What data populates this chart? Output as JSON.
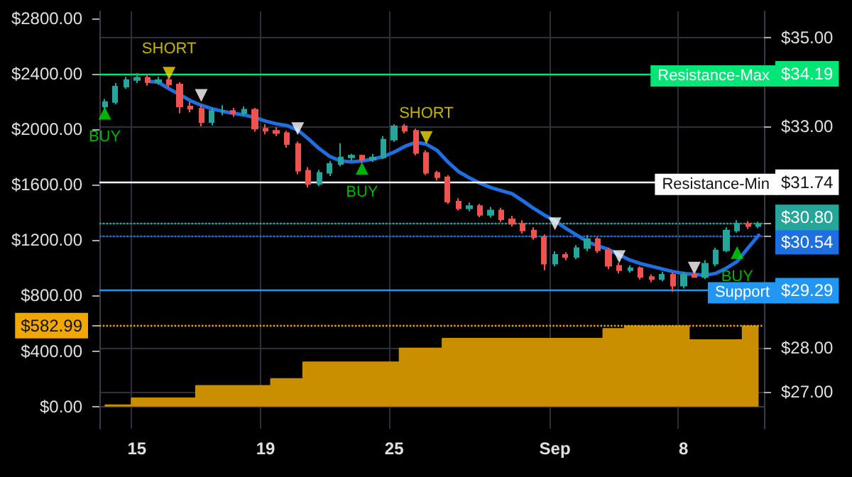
{
  "chart_data": {
    "type": "candlestick",
    "grid": true,
    "categories": [
      null,
      null,
      null,
      "15",
      null,
      null,
      null,
      null,
      null,
      null,
      null,
      null,
      null,
      null,
      null,
      "19",
      null,
      null,
      null,
      null,
      null,
      null,
      null,
      null,
      null,
      null,
      null,
      "25",
      null,
      null,
      null,
      null,
      null,
      null,
      null,
      null,
      null,
      null,
      null,
      null,
      null,
      null,
      "Sep",
      null,
      null,
      null,
      null,
      null,
      null,
      null,
      null,
      null,
      null,
      null,
      "8",
      null,
      null,
      null,
      null,
      null,
      null,
      null
    ],
    "ylim": [
      -160,
      2850
    ],
    "yticks": [
      {
        "value": 0,
        "label": "$0.00"
      },
      {
        "value": 400,
        "label": "$400.00"
      },
      {
        "value": 582.99,
        "label": "$582.99"
      },
      {
        "value": 800,
        "label": "$800.00"
      },
      {
        "value": 1200,
        "label": "$1200.00"
      },
      {
        "value": 1600,
        "label": "$1600.00"
      },
      {
        "value": 2000,
        "label": "$2000.00"
      },
      {
        "value": 2400,
        "label": "$2400.00"
      },
      {
        "value": 2800,
        "label": "$2800.00"
      }
    ],
    "y2lim": [
      26.17,
      35.6
    ],
    "y2ticks": [
      {
        "value": 27,
        "label": "$27.00"
      },
      {
        "value": 28,
        "label": "$28.00"
      },
      {
        "value": 29.29,
        "label": "$29.29"
      },
      {
        "value": 30.54,
        "label": "$30.54"
      },
      {
        "value": 30.8,
        "label": "$30.80"
      },
      {
        "value": 31.74,
        "label": "$31.74"
      },
      {
        "value": 33,
        "label": "$33.00"
      },
      {
        "value": 34.19,
        "label": "$34.19"
      },
      {
        "value": 35,
        "label": "$35.00"
      }
    ],
    "ref_lines": [
      {
        "axis": "y2",
        "value": 34.19,
        "label": "Resistance-Max",
        "color": "#00e676",
        "line_style": "solid"
      },
      {
        "axis": "y2",
        "value": 31.74,
        "label": "Resistance-Min",
        "color": "#ffffff",
        "line_style": "solid"
      },
      {
        "axis": "y2",
        "value": 29.29,
        "label": "Support",
        "color": "#2196f3",
        "line_style": "solid"
      },
      {
        "axis": "y2",
        "value": 30.8,
        "color": "#26a69a",
        "line_style": "dotted"
      },
      {
        "axis": "y2",
        "value": 30.54,
        "color": "#1e6fe0",
        "line_style": "dotted"
      },
      {
        "axis": "y",
        "value": 582.99,
        "color": "#f0a800",
        "line_style": "dotted"
      }
    ],
    "series": [
      {
        "type": "area",
        "color": "#c98f00",
        "values": [
          10,
          10,
          10,
          60,
          60,
          60,
          60,
          60,
          60,
          150,
          150,
          150,
          150,
          150,
          150,
          150,
          200,
          200,
          200,
          320,
          320,
          320,
          320,
          320,
          320,
          320,
          320,
          320,
          420,
          420,
          420,
          420,
          490,
          490,
          490,
          490,
          490,
          490,
          490,
          490,
          490,
          490,
          490,
          490,
          490,
          490,
          490,
          560,
          560,
          580,
          580,
          580,
          580,
          580,
          580,
          480,
          480,
          480,
          480,
          480,
          580,
          580
        ]
      },
      {
        "axis": "y2",
        "ohlc": [
          [
            33.45,
            33.62,
            33.4,
            33.55
          ],
          [
            33.55,
            33.98,
            33.5,
            33.9
          ],
          [
            33.9,
            34.12,
            33.85,
            34.05
          ],
          [
            34.05,
            34.2,
            33.98,
            34.1
          ],
          [
            34.1,
            34.18,
            33.92,
            34.0
          ],
          [
            34.0,
            34.12,
            33.94,
            34.05
          ],
          [
            34.05,
            34.1,
            33.88,
            33.95
          ],
          [
            33.95,
            34.0,
            33.3,
            33.45
          ],
          [
            33.45,
            33.55,
            33.32,
            33.4
          ],
          [
            33.4,
            33.48,
            33.0,
            33.1
          ],
          [
            33.1,
            33.42,
            33.02,
            33.35
          ],
          [
            33.35,
            33.48,
            33.25,
            33.35
          ],
          [
            33.35,
            33.42,
            33.22,
            33.3
          ],
          [
            33.3,
            33.45,
            33.24,
            33.38
          ],
          [
            33.38,
            33.42,
            32.88,
            32.95
          ],
          [
            32.95,
            33.05,
            32.82,
            32.9
          ],
          [
            32.9,
            32.98,
            32.78,
            32.85
          ],
          [
            32.85,
            32.9,
            32.52,
            32.6
          ],
          [
            32.6,
            32.66,
            31.92,
            32.0
          ],
          [
            32.0,
            32.08,
            31.62,
            31.7
          ],
          [
            31.7,
            32.02,
            31.65,
            31.95
          ],
          [
            31.95,
            32.22,
            31.88,
            32.15
          ],
          [
            32.15,
            32.62,
            32.1,
            32.3
          ],
          [
            32.3,
            32.38,
            32.22,
            32.34
          ],
          [
            32.34,
            32.36,
            32.18,
            32.25
          ],
          [
            32.25,
            32.38,
            32.2,
            32.3
          ],
          [
            32.3,
            32.78,
            32.26,
            32.7
          ],
          [
            32.7,
            33.05,
            32.65,
            33.0
          ],
          [
            33.0,
            33.06,
            32.84,
            32.9
          ],
          [
            32.9,
            32.95,
            32.35,
            32.4
          ],
          [
            32.4,
            32.46,
            31.9,
            31.95
          ],
          [
            31.95,
            32.0,
            31.78,
            31.85
          ],
          [
            31.85,
            31.9,
            31.25,
            31.3
          ],
          [
            31.3,
            31.38,
            31.1,
            31.15
          ],
          [
            31.15,
            31.28,
            31.08,
            31.2
          ],
          [
            31.2,
            31.25,
            30.95,
            31.0
          ],
          [
            31.0,
            31.18,
            30.94,
            31.1
          ],
          [
            31.1,
            31.16,
            30.84,
            30.9
          ],
          [
            30.9,
            30.98,
            30.74,
            30.8
          ],
          [
            30.8,
            30.88,
            30.58,
            30.65
          ],
          [
            30.65,
            30.72,
            30.44,
            30.5
          ],
          [
            30.5,
            30.56,
            29.75,
            29.9
          ],
          [
            29.9,
            30.18,
            29.84,
            30.1
          ],
          [
            30.1,
            30.16,
            29.98,
            30.05
          ],
          [
            30.05,
            30.32,
            30.0,
            30.25
          ],
          [
            30.25,
            30.55,
            30.18,
            30.45
          ],
          [
            30.45,
            30.5,
            30.14,
            30.2
          ],
          [
            30.2,
            30.26,
            29.78,
            29.85
          ],
          [
            29.85,
            29.92,
            29.68,
            29.75
          ],
          [
            29.75,
            29.86,
            29.7,
            29.8
          ],
          [
            29.8,
            29.84,
            29.54,
            29.6
          ],
          [
            29.6,
            29.66,
            29.48,
            29.55
          ],
          [
            29.55,
            29.72,
            29.5,
            29.65
          ],
          [
            29.65,
            29.7,
            29.26,
            29.4
          ],
          [
            29.4,
            29.72,
            29.34,
            29.65
          ],
          [
            29.65,
            29.7,
            29.58,
            29.6
          ],
          [
            29.6,
            29.98,
            29.55,
            29.9
          ],
          [
            29.9,
            30.26,
            29.84,
            30.2
          ],
          [
            30.2,
            30.72,
            30.16,
            30.65
          ],
          [
            30.65,
            30.88,
            30.6,
            30.8
          ],
          [
            30.8,
            30.86,
            30.68,
            30.75
          ],
          [
            30.75,
            30.85,
            30.7,
            30.8
          ]
        ],
        "colors": [
          "#26a69a",
          "#26a69a",
          "#26a69a",
          "#26a69a",
          "#ef5350",
          "#26a69a",
          "#ef5350",
          "#ef5350",
          "#ef5350",
          "#ef5350",
          "#26a69a",
          "#26a69a",
          "#ef5350",
          "#26a69a",
          "#ef5350",
          "#ef5350",
          "#ef5350",
          "#ef5350",
          "#ef5350",
          "#ef5350",
          "#26a69a",
          "#26a69a",
          "#26a69a",
          "#26a69a",
          "#ef5350",
          "#26a69a",
          "#26a69a",
          "#26a69a",
          "#ef5350",
          "#ef5350",
          "#ef5350",
          "#ef5350",
          "#ef5350",
          "#ef5350",
          "#26a69a",
          "#ef5350",
          "#26a69a",
          "#ef5350",
          "#ef5350",
          "#ef5350",
          "#ef5350",
          "#ef5350",
          "#26a69a",
          "#ef5350",
          "#26a69a",
          "#26a69a",
          "#ef5350",
          "#ef5350",
          "#ef5350",
          "#26a69a",
          "#ef5350",
          "#ef5350",
          "#26a69a",
          "#ef5350",
          "#26a69a",
          "#ef5350",
          "#26a69a",
          "#26a69a",
          "#26a69a",
          "#26a69a",
          "#ef5350",
          "#26a69a"
        ]
      },
      {
        "type": "line",
        "axis": "y2",
        "color": "#1e6fe0",
        "line_style": "solid",
        "values": [
          null,
          null,
          null,
          null,
          34.02,
          34.0,
          33.85,
          33.72,
          33.58,
          33.48,
          33.4,
          33.34,
          33.3,
          33.26,
          33.2,
          33.12,
          33.06,
          33.02,
          32.92,
          32.72,
          32.5,
          32.32,
          32.22,
          32.2,
          32.22,
          32.26,
          32.32,
          32.42,
          32.55,
          32.64,
          32.6,
          32.46,
          32.2,
          31.98,
          31.84,
          31.72,
          31.62,
          31.55,
          31.48,
          31.32,
          31.15,
          31.0,
          30.87,
          30.7,
          30.55,
          30.4,
          30.3,
          30.22,
          30.1,
          29.98,
          29.9,
          29.84,
          29.78,
          29.72,
          29.68,
          29.66,
          29.64,
          29.68,
          29.8,
          29.95,
          30.25,
          30.54
        ]
      },
      {
        "type": "scatter",
        "axis": "y2",
        "color": "#00e000",
        "marker": "triangle",
        "values": [
          33.3,
          null,
          null,
          null,
          null,
          null,
          null,
          null,
          null,
          null,
          null,
          null,
          null,
          null,
          null,
          null,
          null,
          null,
          null,
          null,
          null,
          null,
          null,
          null,
          32.05,
          null,
          null,
          null,
          null,
          null,
          null,
          null,
          null,
          null,
          null,
          null,
          null,
          null,
          null,
          null,
          null,
          null,
          null,
          null,
          null,
          null,
          null,
          null,
          null,
          null,
          null,
          null,
          null,
          null,
          null,
          null,
          null,
          null,
          null,
          30.15,
          null,
          null
        ],
        "value_labels": [
          "BUY",
          null,
          null,
          null,
          null,
          null,
          null,
          null,
          null,
          null,
          null,
          null,
          null,
          null,
          null,
          null,
          null,
          null,
          null,
          null,
          null,
          null,
          null,
          null,
          "BUY",
          null,
          null,
          null,
          null,
          null,
          null,
          null,
          null,
          null,
          null,
          null,
          null,
          null,
          null,
          null,
          null,
          null,
          null,
          null,
          null,
          null,
          null,
          null,
          null,
          null,
          null,
          null,
          null,
          null,
          null,
          null,
          null,
          null,
          null,
          "BUY",
          null,
          null
        ]
      },
      {
        "type": "scatter",
        "axis": "y2",
        "color": "#f0e000",
        "marker": "triangle",
        "values": [
          null,
          null,
          null,
          null,
          null,
          null,
          34.2,
          null,
          null,
          null,
          null,
          null,
          null,
          null,
          null,
          null,
          null,
          null,
          null,
          null,
          null,
          null,
          null,
          null,
          null,
          null,
          null,
          null,
          null,
          null,
          32.75,
          null,
          null,
          null,
          null,
          null,
          null,
          null,
          null,
          null,
          null,
          null,
          null,
          null,
          null,
          null,
          null,
          null,
          null,
          null,
          null,
          null,
          null,
          null,
          null,
          null,
          null,
          null,
          null,
          null,
          null,
          null
        ],
        "value_labels": [
          null,
          null,
          null,
          null,
          null,
          null,
          "SHORT",
          null,
          null,
          null,
          null,
          null,
          null,
          null,
          null,
          null,
          null,
          null,
          null,
          null,
          null,
          null,
          null,
          null,
          null,
          null,
          null,
          null,
          null,
          null,
          "SHORT",
          null,
          null,
          null,
          null,
          null,
          null,
          null,
          null,
          null,
          null,
          null,
          null,
          null,
          null,
          null,
          null,
          null,
          null,
          null,
          null,
          null,
          null,
          null,
          null,
          null,
          null,
          null,
          null,
          null,
          null,
          null
        ]
      },
      {
        "type": "scatter",
        "axis": "y2",
        "color": "#ffffff",
        "marker": "triangle",
        "values": [
          null,
          null,
          null,
          null,
          null,
          null,
          null,
          null,
          null,
          33.7,
          null,
          null,
          null,
          null,
          null,
          null,
          null,
          null,
          32.95,
          null,
          null,
          null,
          null,
          null,
          null,
          null,
          null,
          null,
          null,
          null,
          null,
          null,
          null,
          null,
          null,
          null,
          null,
          null,
          null,
          null,
          null,
          null,
          30.8,
          null,
          null,
          null,
          null,
          null,
          30.06,
          null,
          null,
          null,
          null,
          null,
          null,
          29.8,
          null,
          null,
          null,
          null,
          null,
          null
        ]
      }
    ]
  }
}
